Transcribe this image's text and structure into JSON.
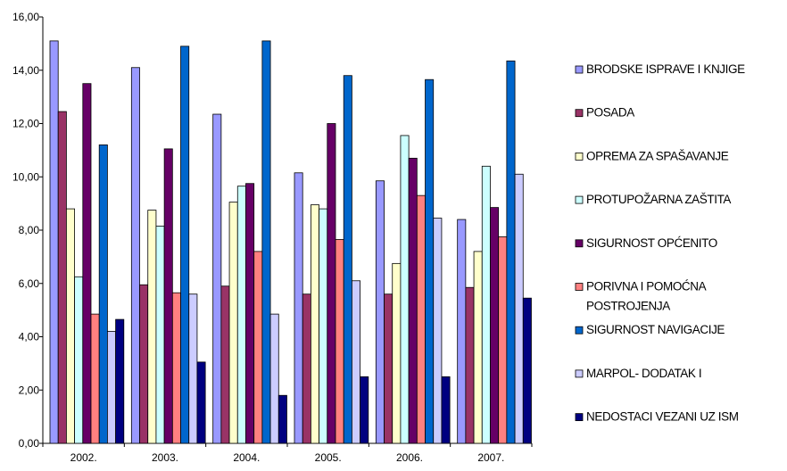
{
  "chart_data": {
    "type": "bar",
    "title": "",
    "xlabel": "",
    "ylabel": "",
    "ylim": [
      0,
      16
    ],
    "y_ticks": [
      "0,00",
      "2,00",
      "4,00",
      "6,00",
      "8,00",
      "10,00",
      "12,00",
      "14,00",
      "16,00"
    ],
    "y_tick_values": [
      0,
      2,
      4,
      6,
      8,
      10,
      12,
      14,
      16
    ],
    "categories": [
      "2002.",
      "2003.",
      "2004.",
      "2005.",
      "2006.",
      "2007."
    ],
    "grid": false,
    "legend_position": "right",
    "series": [
      {
        "name": "BRODSKE ISPRAVE I KNJIGE",
        "color": "#9999ff",
        "values": [
          15.1,
          14.1,
          12.35,
          10.15,
          9.85,
          8.4
        ]
      },
      {
        "name": "POSADA",
        "color": "#993366",
        "values": [
          12.45,
          5.95,
          5.9,
          5.6,
          5.6,
          5.85
        ]
      },
      {
        "name": "OPREMA ZA SPAŠAVANJE",
        "color": "#ffffcc",
        "values": [
          8.8,
          8.75,
          9.05,
          8.95,
          6.75,
          7.2
        ]
      },
      {
        "name": "PROTUPOŽARNA ZAŠTITA",
        "color": "#ccffff",
        "values": [
          6.25,
          8.15,
          9.65,
          8.8,
          11.55,
          10.4
        ]
      },
      {
        "name": "SIGURNOST OPĆENITO",
        "color": "#660066",
        "values": [
          13.5,
          11.05,
          9.75,
          12.0,
          10.7,
          8.85
        ]
      },
      {
        "name": "PORIVNA I POMOĆNA POSTROJENJA",
        "color": "#ff8080",
        "values": [
          4.85,
          5.65,
          7.2,
          7.65,
          9.3,
          7.75
        ]
      },
      {
        "name": "SIGURNOST NAVIGACIJE",
        "color": "#0066cc",
        "values": [
          11.2,
          14.9,
          15.1,
          13.8,
          13.65,
          14.35
        ]
      },
      {
        "name": "MARPOL- DODATAK I",
        "color": "#ccccff",
        "values": [
          4.2,
          5.6,
          4.85,
          6.1,
          8.45,
          10.1
        ]
      },
      {
        "name": "NEDOSTACI VEZANI UZ ISM",
        "color": "#000080",
        "values": [
          4.65,
          3.05,
          1.8,
          2.5,
          2.5,
          5.45
        ]
      }
    ]
  }
}
